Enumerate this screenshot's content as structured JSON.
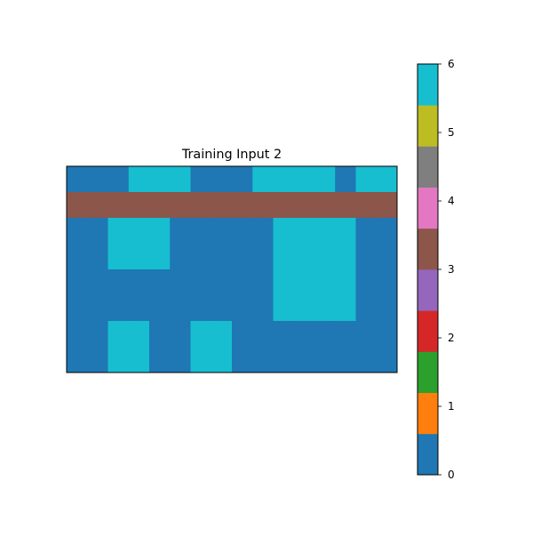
{
  "chart_data": {
    "type": "heatmap",
    "title": "Training Input 2",
    "grid": [
      [
        0,
        0,
        0,
        6,
        6,
        6,
        0,
        0,
        0,
        6,
        6,
        6,
        6,
        0,
        6,
        6
      ],
      [
        3,
        3,
        3,
        3,
        3,
        3,
        3,
        3,
        3,
        3,
        3,
        3,
        3,
        3,
        3,
        3
      ],
      [
        0,
        0,
        6,
        6,
        6,
        0,
        0,
        0,
        0,
        0,
        6,
        6,
        6,
        6,
        0,
        0
      ],
      [
        0,
        0,
        6,
        6,
        6,
        0,
        0,
        0,
        0,
        0,
        6,
        6,
        6,
        6,
        0,
        0
      ],
      [
        0,
        0,
        0,
        0,
        0,
        0,
        0,
        0,
        0,
        0,
        6,
        6,
        6,
        6,
        0,
        0
      ],
      [
        0,
        0,
        0,
        0,
        0,
        0,
        0,
        0,
        0,
        0,
        6,
        6,
        6,
        6,
        0,
        0
      ],
      [
        0,
        0,
        6,
        6,
        0,
        0,
        6,
        6,
        0,
        0,
        0,
        0,
        0,
        0,
        0,
        0
      ],
      [
        0,
        0,
        6,
        6,
        0,
        0,
        6,
        6,
        0,
        0,
        0,
        0,
        0,
        0,
        0,
        0
      ]
    ],
    "colorbar": {
      "min": 0,
      "max": 6,
      "ticks": [
        "0",
        "1",
        "2",
        "3",
        "4",
        "5",
        "6"
      ],
      "colors": [
        "#1f77b4",
        "#ff7f0e",
        "#2ca02c",
        "#d62728",
        "#9467bd",
        "#8c564b",
        "#e377c2",
        "#7f7f7f",
        "#bcbd22",
        "#17becf"
      ]
    },
    "axes_visible": false
  }
}
